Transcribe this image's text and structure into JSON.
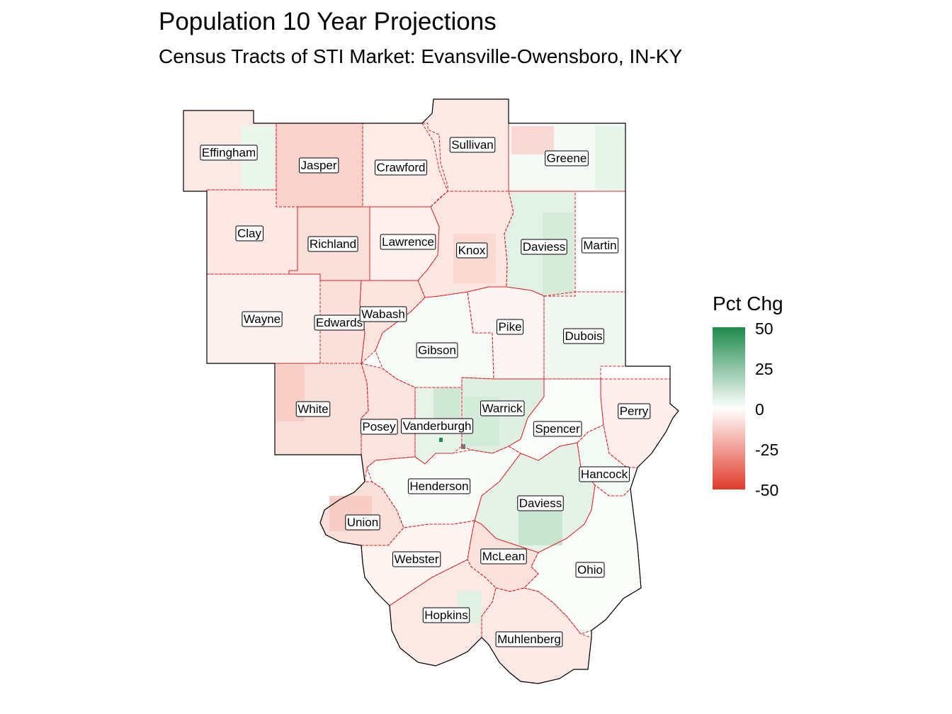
{
  "title": "Population 10 Year Projections",
  "subtitle": "Census Tracts of STI Market: Evansville-Owensboro, IN-KY",
  "legend": {
    "title": "Pct Chg",
    "colors": {
      "low": "#e03b2b",
      "mid": "#ffffff",
      "high": "#1e8a4c"
    },
    "ticks": [
      "50",
      "25",
      "0",
      "-25",
      "-50"
    ]
  },
  "colors": {
    "county_border": "#e02020",
    "market_outline": "#000000"
  },
  "counties": [
    {
      "name": "Effingham",
      "fill": "#fce9e6"
    },
    {
      "name": "Jasper",
      "fill": "#f9d3cc"
    },
    {
      "name": "Crawford",
      "fill": "#fdebe8"
    },
    {
      "name": "Sullivan",
      "fill": "#fde9e5"
    },
    {
      "name": "Greene",
      "fill": "#f6faf6"
    },
    {
      "name": "Clay",
      "fill": "#fde8e4"
    },
    {
      "name": "Richland",
      "fill": "#fbe0da"
    },
    {
      "name": "Lawrence",
      "fill": "#fef0ed"
    },
    {
      "name": "Knox",
      "fill": "#fce6e1"
    },
    {
      "name": "Daviess",
      "fill": "#e3f2e6"
    },
    {
      "name": "Martin",
      "fill": "#ffffff"
    },
    {
      "name": "Wayne",
      "fill": "#fdf2f0"
    },
    {
      "name": "Edwards",
      "fill": "#fbe1dc"
    },
    {
      "name": "Wabash",
      "fill": "#fbe3de"
    },
    {
      "name": "Gibson",
      "fill": "#f7fbf7"
    },
    {
      "name": "Pike",
      "fill": "#fdf5f3"
    },
    {
      "name": "Dubois",
      "fill": "#f1f8f2"
    },
    {
      "name": "White",
      "fill": "#fae0da"
    },
    {
      "name": "Posey",
      "fill": "#fbe4df"
    },
    {
      "name": "Vanderburgh",
      "fill": "#e6f3e8"
    },
    {
      "name": "Warrick",
      "fill": "#dff0e3"
    },
    {
      "name": "Spencer",
      "fill": "#fbfdfb"
    },
    {
      "name": "Perry",
      "fill": "#fdeeeb"
    },
    {
      "name": "Hancock",
      "fill": "#f4faf5"
    },
    {
      "name": "Henderson",
      "fill": "#f8fbf8"
    },
    {
      "name": "Daviess",
      "fill": "#e4f2e7"
    },
    {
      "name": "Union",
      "fill": "#fbdfd9"
    },
    {
      "name": "Webster",
      "fill": "#fef4f2"
    },
    {
      "name": "McLean",
      "fill": "#fbe2dd"
    },
    {
      "name": "Ohio",
      "fill": "#fafdfa"
    },
    {
      "name": "Hopkins",
      "fill": "#fbe9e5"
    },
    {
      "name": "Muhlenberg",
      "fill": "#fde9e5"
    }
  ]
}
